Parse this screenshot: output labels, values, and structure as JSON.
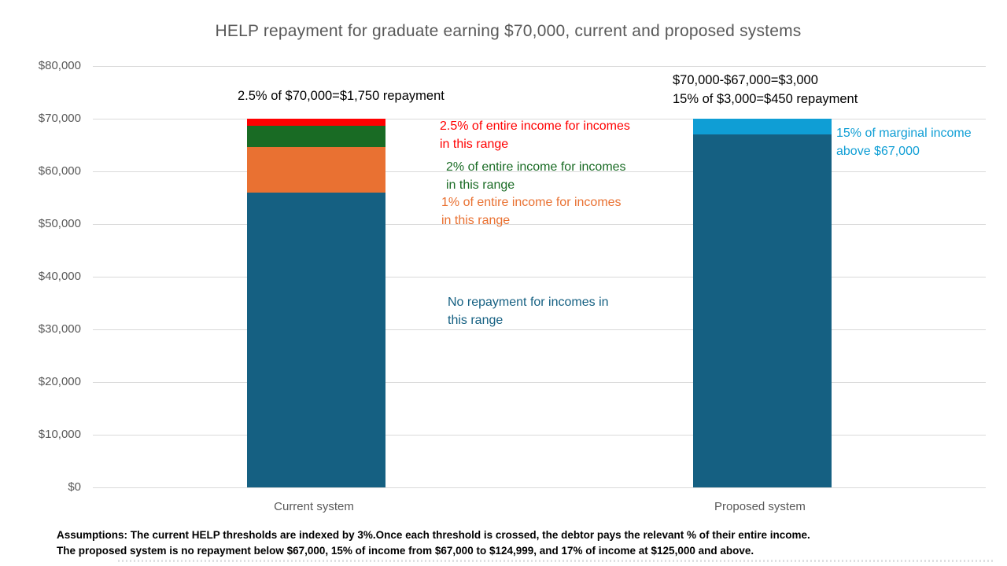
{
  "chart_data": {
    "type": "bar",
    "subtype": "stacked",
    "title": "HELP repayment for graduate earning $70,000, current and proposed systems",
    "xlabel": "",
    "ylabel": "",
    "ylim": [
      0,
      80000
    ],
    "grid": true,
    "legend": false,
    "categories": [
      "Current system",
      "Proposed system"
    ],
    "yticks": [
      0,
      10000,
      20000,
      30000,
      40000,
      50000,
      60000,
      70000,
      80000
    ],
    "ytick_labels": [
      "$0",
      "$10,000",
      "$20,000",
      "$30,000",
      "$40,000",
      "$50,000",
      "$60,000",
      "$70,000",
      "$80,000"
    ],
    "bars": [
      {
        "category": "Current system",
        "segments": [
          {
            "name": "no-repayment-range",
            "from": 0,
            "to": 56000,
            "color": "#156082"
          },
          {
            "name": "one-percent-range",
            "from": 56000,
            "to": 64700,
            "color": "#E97132"
          },
          {
            "name": "two-percent-range",
            "from": 64700,
            "to": 68600,
            "color": "#196B24"
          },
          {
            "name": "two-point-five-percent-range",
            "from": 68600,
            "to": 70000,
            "color": "#FF0000"
          }
        ]
      },
      {
        "category": "Proposed system",
        "segments": [
          {
            "name": "no-repayment-below-67000",
            "from": 0,
            "to": 67000,
            "color": "#156082"
          },
          {
            "name": "fifteen-percent-marginal-range",
            "from": 67000,
            "to": 70000,
            "color": "#0F9ED5"
          }
        ]
      }
    ],
    "annotations": [
      {
        "text": "2.5% of $70,000=$1,750 repayment",
        "color": "#000000"
      },
      {
        "text": "$70,000-$67,000=$3,000\n15% of $3,000=$450 repayment",
        "color": "#000000"
      },
      {
        "text": "2.5% of entire income for incomes\nin this range",
        "color": "#FF0000"
      },
      {
        "text": "2% of entire income for incomes\nin this range",
        "color": "#196B24"
      },
      {
        "text": "1% of entire income for incomes\nin this range",
        "color": "#E97132"
      },
      {
        "text": "No repayment for incomes in\nthis range",
        "color": "#156082"
      },
      {
        "text": "15% of marginal income\nabove $67,000",
        "color": "#0F9ED5"
      }
    ],
    "footnotes": [
      "Assumptions: The current HELP thresholds are indexed by 3%.Once each threshold is crossed, the debtor pays the relevant % of their entire income.",
      "The proposed system is no repayment below $67,000, 15% of income from $67,000 to $124,999, and 17% of income at $125,000 and above."
    ],
    "colors": {
      "teal": "#156082",
      "orange": "#E97132",
      "green": "#196B24",
      "red": "#FF0000",
      "light_blue": "#0F9ED5",
      "axis_text": "#595959",
      "gridline": "#D9D9D9"
    }
  }
}
